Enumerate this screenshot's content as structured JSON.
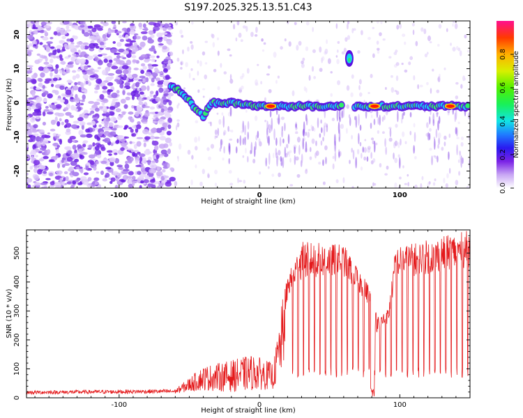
{
  "title": "S197.2025.325.13.51.C43",
  "chart_data": [
    {
      "type": "heatmap",
      "name": "spectrogram",
      "xlabel": "Height of straight line (km)",
      "ylabel": "Frequency (Hz)",
      "xlim": [
        -166,
        150
      ],
      "ylim": [
        -25,
        24
      ],
      "xticks": [
        -100,
        0,
        100
      ],
      "yticks": [
        -20,
        -10,
        0,
        10,
        20
      ],
      "colorbar": {
        "label": "Normalized spectral amplitude",
        "range": [
          0,
          1
        ],
        "ticks": [
          0.0,
          0.2,
          0.4,
          0.6,
          0.8
        ]
      },
      "features": [
        {
          "desc": "noise region",
          "x_range": [
            -166,
            -63
          ]
        },
        {
          "desc": "signal track",
          "points": [
            [
              -63,
              5
            ],
            [
              -55,
              3
            ],
            [
              -47,
              -1
            ],
            [
              -40,
              -4
            ],
            [
              -34,
              0
            ],
            [
              -20,
              0
            ],
            [
              0,
              -1
            ],
            [
              60,
              -1
            ]
          ]
        },
        {
          "desc": "signal track",
          "points": [
            [
              68,
              -1
            ],
            [
              150,
              -1
            ]
          ]
        },
        {
          "desc": "peak blob",
          "x": 64,
          "y": 13
        },
        {
          "desc": "max amplitude",
          "x": 8,
          "y": -1
        },
        {
          "desc": "max amplitude",
          "x": 82,
          "y": -1
        },
        {
          "desc": "max amplitude",
          "x": 136,
          "y": -1
        }
      ]
    },
    {
      "type": "line",
      "name": "snr",
      "xlabel": "Height of straight line (km)",
      "ylabel": "SNR (10 * v/v)",
      "xlim": [
        -166,
        150
      ],
      "ylim": [
        0,
        580
      ],
      "xticks": [
        -100,
        0,
        100
      ],
      "yticks": [
        0,
        100,
        200,
        300,
        400,
        500
      ],
      "color": "#e41a1c",
      "envelope": [
        {
          "x": -166,
          "base": 12,
          "peak": 25
        },
        {
          "x": -60,
          "base": 15,
          "peak": 30
        },
        {
          "x": -40,
          "base": 25,
          "peak": 110
        },
        {
          "x": -20,
          "base": 20,
          "peak": 130
        },
        {
          "x": -5,
          "base": 25,
          "peak": 150
        },
        {
          "x": 10,
          "base": 30,
          "peak": 120
        },
        {
          "x": 17,
          "base": 90,
          "peak": 360
        },
        {
          "x": 20,
          "base": 350,
          "peak": 420
        },
        {
          "x": 30,
          "base": 410,
          "peak": 540
        },
        {
          "x": 60,
          "base": 420,
          "peak": 530
        },
        {
          "x": 78,
          "base": 320,
          "peak": 390
        },
        {
          "x": 84,
          "base": 220,
          "peak": 280
        },
        {
          "x": 92,
          "base": 260,
          "peak": 310
        },
        {
          "x": 97,
          "base": 410,
          "peak": 520
        },
        {
          "x": 150,
          "base": 450,
          "peak": 580
        }
      ]
    }
  ]
}
